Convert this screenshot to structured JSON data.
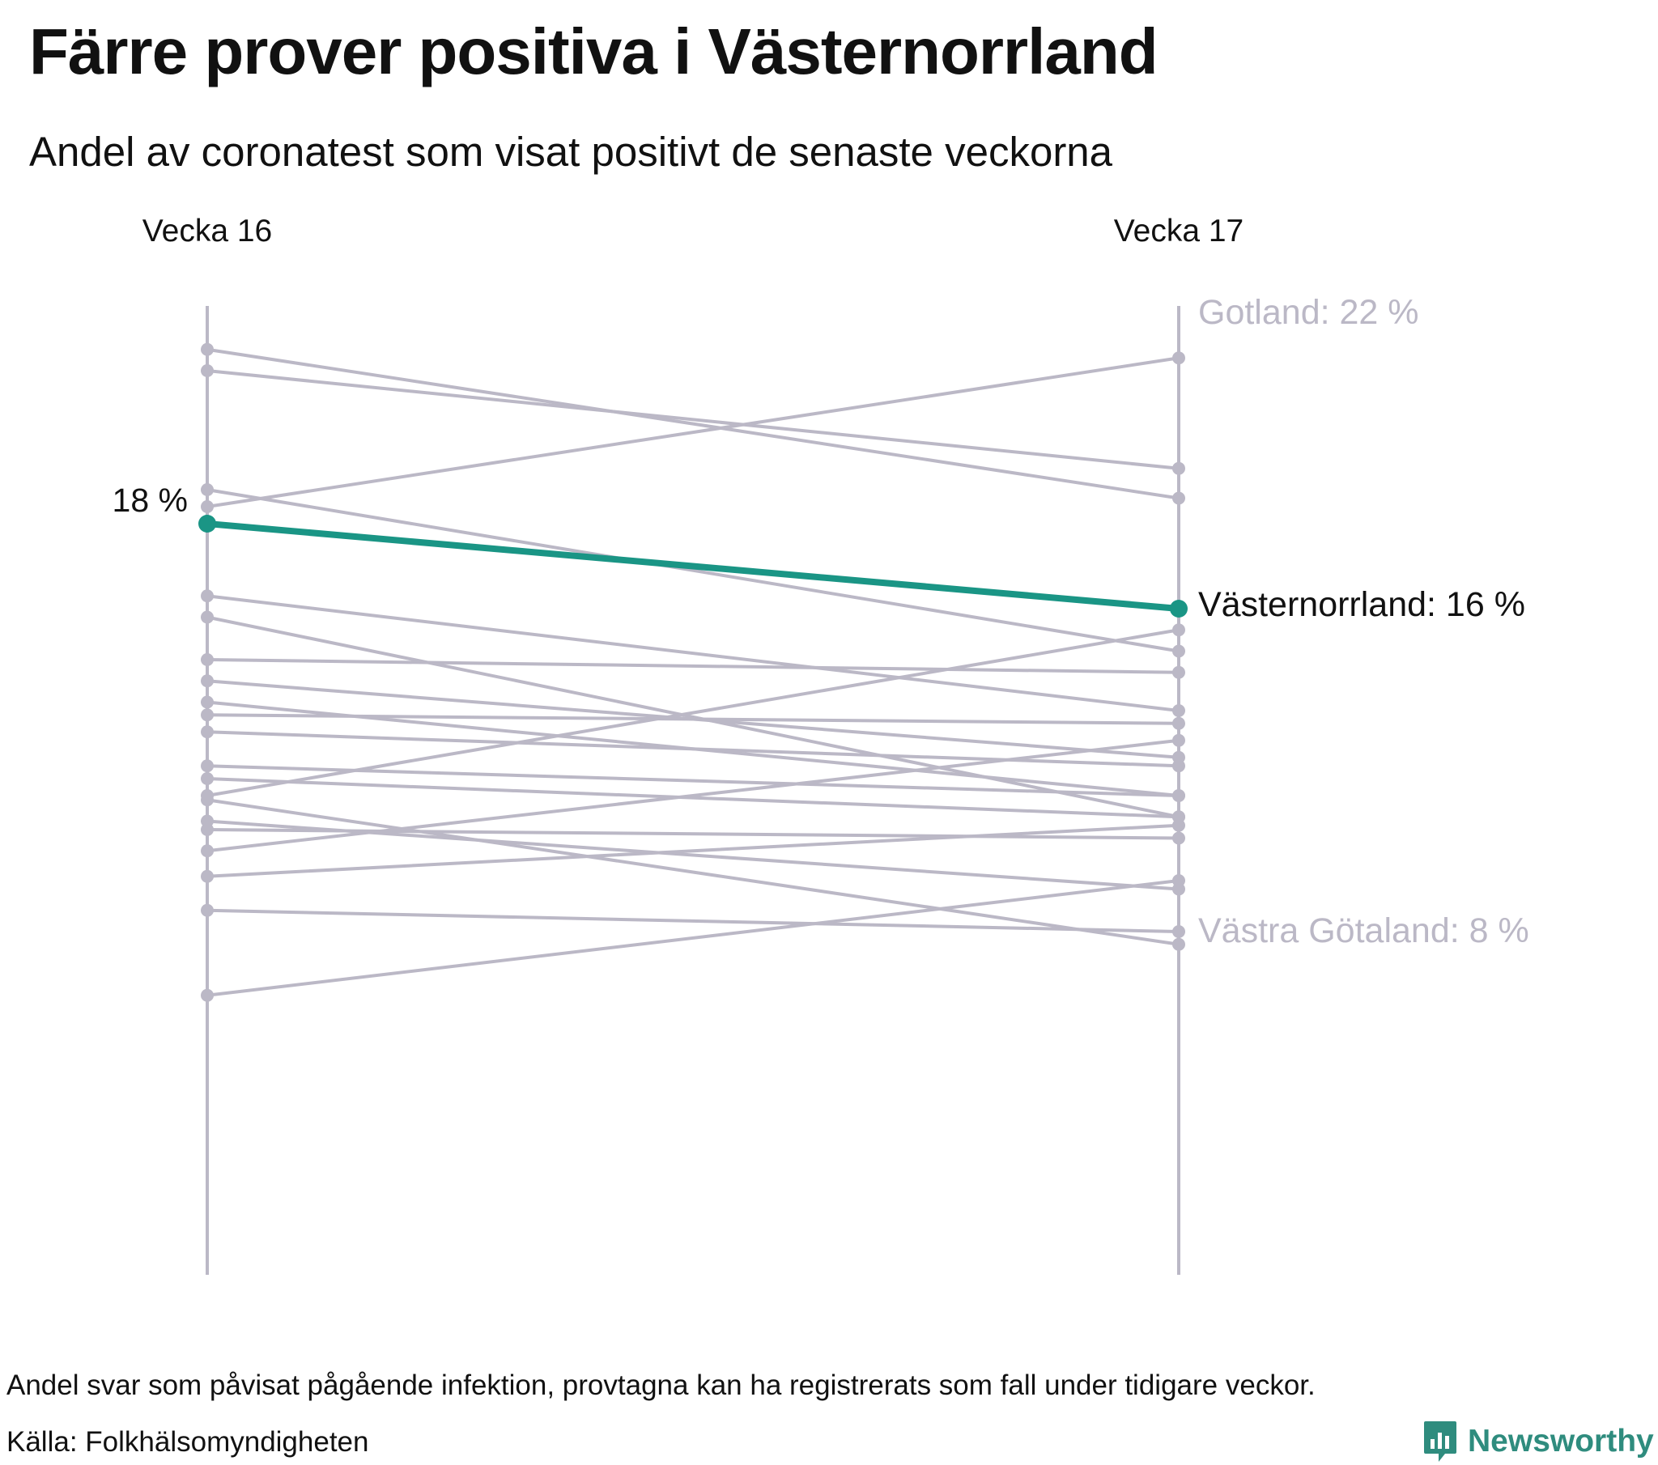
{
  "title": "Färre prover positiva i Västernorrland",
  "subtitle": "Andel av coronatest som visat positivt de senaste veckorna",
  "note": "Andel svar som påvisat pågående infektion, provtagna kan ha registrerats som fall under tidigare veckor.",
  "source": "Källa: Folkhälsomyndigheten",
  "brand": {
    "name": "Newsworthy",
    "icon": "newsworthy-logo-icon",
    "color": "#2f8c7e"
  },
  "colors": {
    "highlight": "#1a9585",
    "other": "#bbb8c6",
    "text": "#111111"
  },
  "chart_data": {
    "type": "line",
    "subtype": "slope",
    "x": [
      "Vecka 16",
      "Vecka 17"
    ],
    "ylim": [
      0,
      23
    ],
    "y_unit": "%",
    "highlight": {
      "name": "Västernorrland",
      "values": [
        18,
        16
      ],
      "start_label": "18 %",
      "end_label": "Västernorrland: 16 %"
    },
    "end_labels": [
      {
        "value": 22,
        "text": "Gotland: 22 %"
      },
      {
        "value": 8,
        "text": "Västra Götaland: 8 %"
      }
    ],
    "series": [
      {
        "values": [
          22.1,
          18.6
        ]
      },
      {
        "values": [
          21.6,
          19.3
        ]
      },
      {
        "values": [
          18.4,
          21.9
        ]
      },
      {
        "values": [
          18.8,
          15.0
        ]
      },
      {
        "values": [
          16.3,
          13.6
        ]
      },
      {
        "values": [
          15.8,
          11.1
        ]
      },
      {
        "values": [
          14.8,
          14.5
        ]
      },
      {
        "values": [
          14.3,
          12.5
        ]
      },
      {
        "values": [
          13.5,
          13.3
        ]
      },
      {
        "values": [
          13.1,
          12.3
        ]
      },
      {
        "values": [
          12.3,
          11.6
        ]
      },
      {
        "values": [
          12.0,
          11.1
        ]
      },
      {
        "values": [
          11.6,
          15.5
        ]
      },
      {
        "values": [
          11.0,
          9.4
        ]
      },
      {
        "values": [
          10.8,
          10.6
        ]
      },
      {
        "values": [
          10.3,
          12.9
        ]
      },
      {
        "values": [
          9.7,
          10.9
        ]
      },
      {
        "values": [
          8.9,
          8.4
        ]
      },
      {
        "values": [
          6.9,
          9.6
        ]
      },
      {
        "values": [
          11.5,
          8.1
        ]
      },
      {
        "values": [
          13.8,
          11.6
        ]
      }
    ]
  }
}
